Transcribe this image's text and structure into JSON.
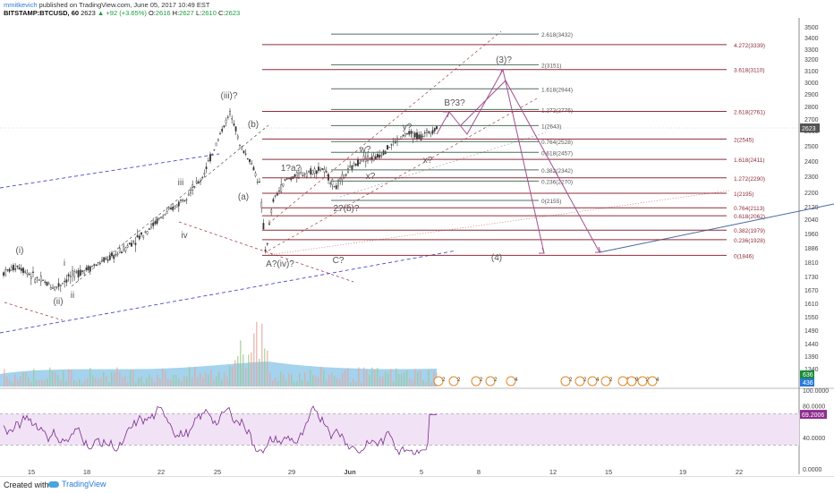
{
  "header": {
    "author": "mmitkevich",
    "published_text": "published on TradingView.com, June 05, 2017 10:49 EST",
    "symbol": "BITSTAMP:BTCUSD, 60",
    "last": "2623",
    "change": "▲ +92 (+3.65%)",
    "open_label": "O:",
    "open": "2616",
    "high_label": "H:",
    "high": "2627",
    "low_label": "L:",
    "low": "2610",
    "close_label": "C:",
    "close": "2623"
  },
  "chart_data": {
    "type": "candlestick",
    "price_axis_ticks": [
      3500,
      3400,
      3300,
      3200,
      3100,
      3000,
      2900,
      2800,
      2700,
      2600,
      2500,
      2400,
      2300,
      2200,
      2120,
      2040,
      1960,
      1886,
      1810,
      1730,
      1670,
      1610,
      1550,
      1490,
      1440,
      1390,
      1340
    ],
    "price_last_label": "2623",
    "volume_labels": [
      "636",
      "436"
    ],
    "rsi_ticks": [
      {
        "v": 100,
        "t": "100.0000"
      },
      {
        "v": 80,
        "t": "80.0000"
      },
      {
        "v": 40,
        "t": "40.0000"
      },
      {
        "v": 0,
        "t": "0.0000"
      }
    ],
    "rsi_last": "69.2006",
    "rsi_bands": [
      70,
      30
    ],
    "date_ticks": [
      {
        "t": "15",
        "x": 35
      },
      {
        "t": "18",
        "x": 97
      },
      {
        "t": "22",
        "x": 180
      },
      {
        "t": "25",
        "x": 243
      },
      {
        "t": "29",
        "x": 326
      },
      {
        "t": "Jun",
        "x": 391
      },
      {
        "t": "5",
        "x": 471
      },
      {
        "t": "8",
        "x": 535
      },
      {
        "t": "12",
        "x": 618
      },
      {
        "t": "15",
        "x": 680
      },
      {
        "t": "19",
        "x": 763
      },
      {
        "t": "22",
        "x": 826
      }
    ],
    "fib_levels_grey": [
      {
        "label": "2.618(3432)",
        "v": 3432
      },
      {
        "label": "2(3151)",
        "v": 3151
      },
      {
        "label": "1.618(2944)",
        "v": 2944
      },
      {
        "label": "1.272(2776)",
        "v": 2776
      },
      {
        "label": "1(2643)",
        "v": 2643
      },
      {
        "label": "0.764(2528)",
        "v": 2528
      },
      {
        "label": "0.618(2457)",
        "v": 2457
      },
      {
        "label": "0.382(2342)",
        "v": 2342
      },
      {
        "label": "0.236(2270)",
        "v": 2270
      },
      {
        "label": "0(2155)",
        "v": 2155
      }
    ],
    "fib_levels_red": [
      {
        "label": "4.272(3339)",
        "v": 3339
      },
      {
        "label": "3.618(3110)",
        "v": 3110
      },
      {
        "label": "2.618(2761)",
        "v": 2761
      },
      {
        "label": "2(2545)",
        "v": 2545
      },
      {
        "label": "1.618(2411)",
        "v": 2411
      },
      {
        "label": "1.272(2290)",
        "v": 2290
      },
      {
        "label": "1(2195)",
        "v": 2195
      },
      {
        "label": "0.764(2113)",
        "v": 2113
      },
      {
        "label": "0.618(2062)",
        "v": 2062
      },
      {
        "label": "0.382(1979)",
        "v": 1979
      },
      {
        "label": "0.236(1928)",
        "v": 1928
      },
      {
        "label": "0(1846)",
        "v": 1846
      }
    ],
    "wave_labels": [
      "(i)",
      "i",
      "ii",
      "(ii)",
      "iii",
      "(iii)?",
      "iv",
      "(a)",
      "(b)",
      "A?(iv)?",
      "C?",
      "1?a?",
      "2?(b)?",
      "w?",
      "x?",
      "y?",
      "x?",
      "B?3?",
      "(3)?",
      "(4)"
    ],
    "event_badges": [
      "2",
      "2",
      "2",
      "2",
      "4",
      "2",
      "2",
      "4",
      "2",
      "12",
      "9",
      "2",
      "4"
    ]
  }
}
